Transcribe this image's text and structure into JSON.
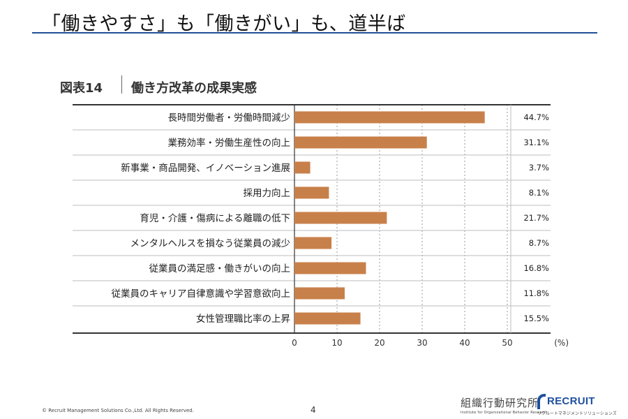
{
  "slide": {
    "title": "「働きやすさ」も「働きがい」も、道半ば",
    "page_number": "4",
    "copyright": "© Recruit Management Solutions Co.,Ltd. All Rights Reserved."
  },
  "figure": {
    "label": "図表14",
    "title": "働き方改革の成果実感"
  },
  "logos": {
    "institute_name": "組織行動研究所",
    "institute_subtitle": "Institute for Organizational Behavior Research",
    "brand_name": "RECRUIT",
    "brand_subtitle": "リクルートマネジメントソリューションズ"
  },
  "colors": {
    "bar": "#c8804a",
    "title_rule": "#1f4e96",
    "brand": "#1d4f9f"
  },
  "chart_data": {
    "type": "bar",
    "orientation": "horizontal",
    "title": "働き方改革の成果実感",
    "categories": [
      "長時間労働者・労働時間減少",
      "業務効率・労働生産性の向上",
      "新事業・商品開発、イノベーション進展",
      "採用力向上",
      "育児・介護・傷病による離職の低下",
      "メンタルヘルスを損なう従業員の減少",
      "従業員の満足感・働きがいの向上",
      "従業員のキャリア自律意識や学習意欲向上",
      "女性管理職比率の上昇"
    ],
    "values": [
      44.7,
      31.1,
      3.7,
      8.1,
      21.7,
      8.7,
      16.8,
      11.8,
      15.5
    ],
    "value_labels": [
      "44.7%",
      "31.1%",
      "3.7%",
      "8.1%",
      "21.7%",
      "8.7%",
      "16.8%",
      "11.8%",
      "15.5%"
    ],
    "x_ticks": [
      "0",
      "10",
      "20",
      "30",
      "40",
      "50"
    ],
    "x_unit": "(%)",
    "xlim": [
      0,
      50
    ],
    "grid": true
  }
}
